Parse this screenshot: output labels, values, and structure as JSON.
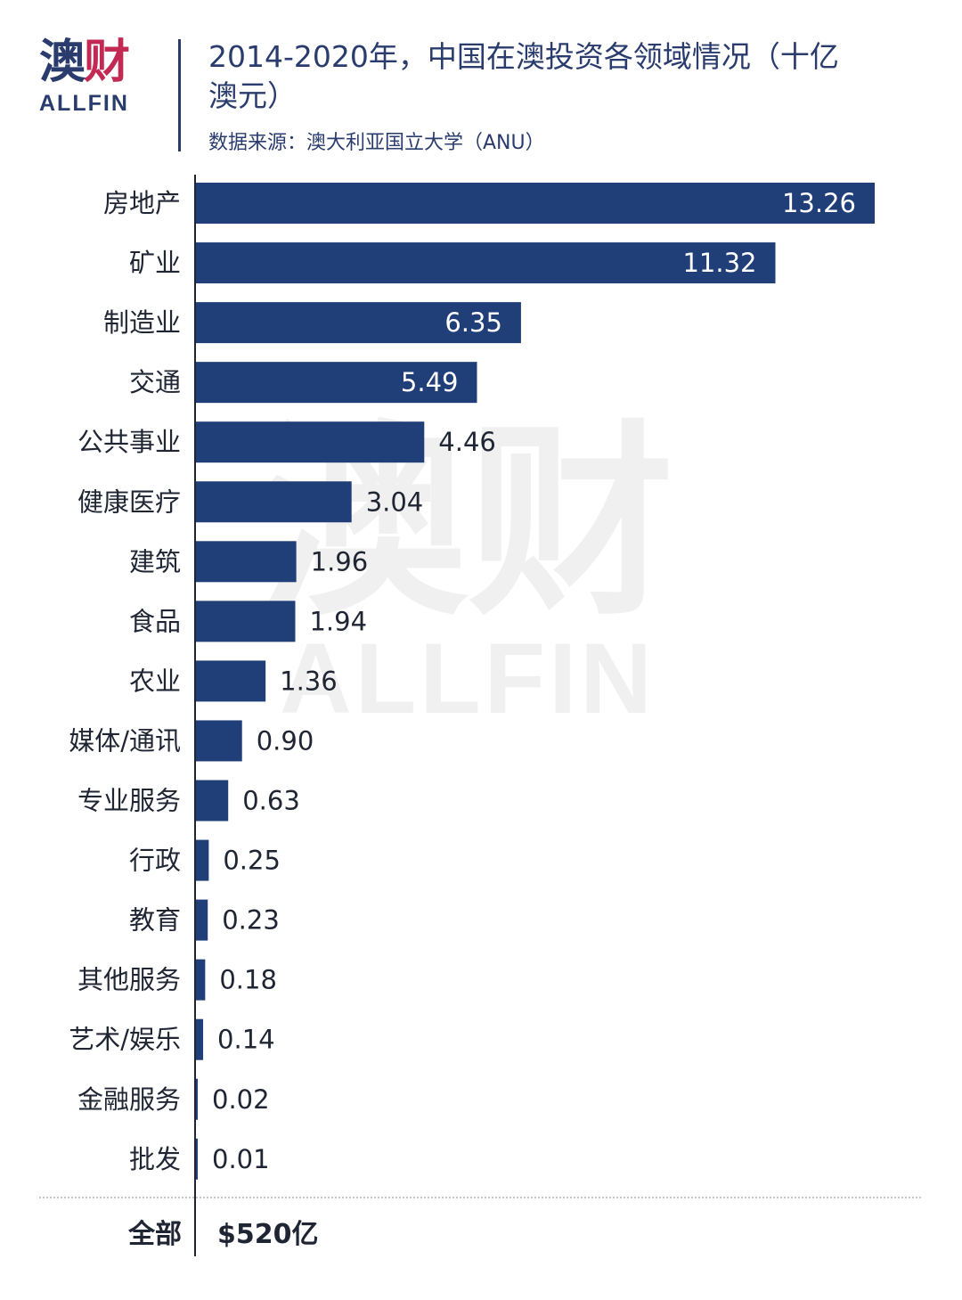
{
  "logo": {
    "cn": "澳财",
    "en": "ALLFIN"
  },
  "header": {
    "title": "2014-2020年，中国在澳投资各领域情况（十亿澳元）",
    "source": "数据来源：澳大利亚国立大学（ANU）"
  },
  "watermark": {
    "cn": "澳财",
    "en": "ALLFIN"
  },
  "colors": {
    "bar": "#203e78",
    "text": "#1f2533",
    "brand": "#2a3c6e",
    "accent": "#c22a53"
  },
  "chart_data": {
    "type": "bar",
    "orientation": "horizontal",
    "title": "2014-2020年，中国在澳投资各领域情况（十亿澳元）",
    "categories": [
      "房地产",
      "矿业",
      "制造业",
      "交通",
      "公共事业",
      "健康医疗",
      "建筑",
      "食品",
      "农业",
      "媒体/通讯",
      "专业服务",
      "行政",
      "教育",
      "其他服务",
      "艺术/娱乐",
      "金融服务",
      "批发"
    ],
    "values": [
      13.26,
      11.32,
      6.35,
      5.49,
      4.46,
      3.04,
      1.96,
      1.94,
      1.36,
      0.9,
      0.63,
      0.25,
      0.23,
      0.18,
      0.14,
      0.02,
      0.01
    ],
    "value_labels": [
      "13.26",
      "11.32",
      "6.35",
      "5.49",
      "4.46",
      "3.04",
      "1.96",
      "1.94",
      "1.36",
      "0.90",
      "0.63",
      "0.25",
      "0.23",
      "0.18",
      "0.14",
      "0.02",
      "0.01"
    ],
    "xlim": [
      0,
      13.26
    ],
    "grid": false,
    "legend": "none"
  },
  "summary": {
    "label": "全部",
    "value": "$520亿"
  }
}
